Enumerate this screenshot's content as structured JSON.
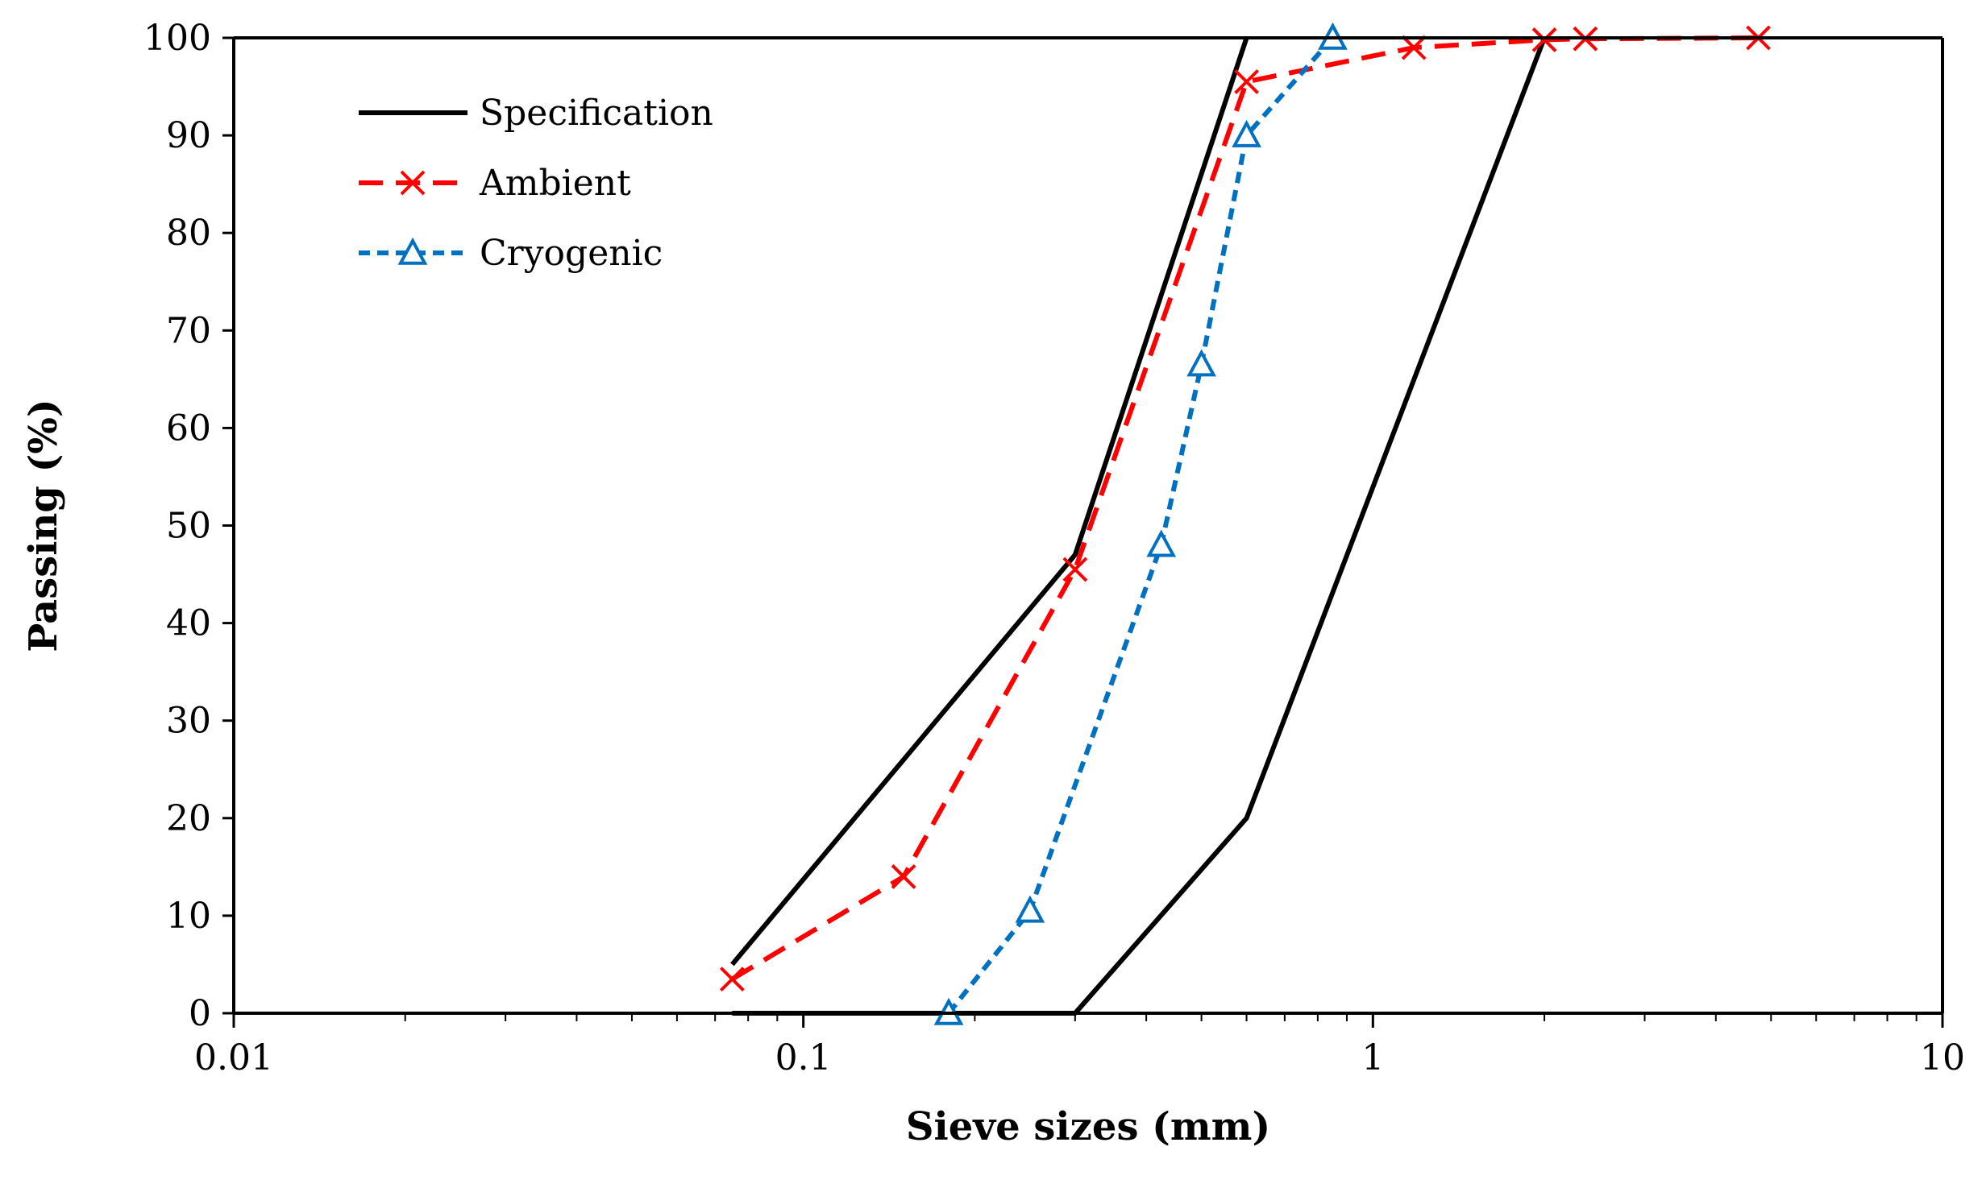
{
  "chart_data": {
    "type": "line",
    "title": "",
    "xlabel": "Sieve sizes (mm)",
    "ylabel": "Passing (%)",
    "xscale": "log",
    "xlim": [
      0.01,
      10
    ],
    "ylim": [
      0,
      100
    ],
    "xticks": [
      0.01,
      0.1,
      1,
      10
    ],
    "xtick_labels": [
      "0.01",
      "0.1",
      "1",
      "10"
    ],
    "yticks": [
      0,
      10,
      20,
      30,
      40,
      50,
      60,
      70,
      80,
      90,
      100
    ],
    "ytick_labels": [
      "0",
      "10",
      "20",
      "30",
      "40",
      "50",
      "60",
      "70",
      "80",
      "90",
      "100"
    ],
    "grid": false,
    "legend_position": "top-left",
    "series": [
      {
        "name": "Specification",
        "color": "#000000",
        "style": "solid",
        "marker": "none",
        "lines": [
          {
            "x": [
              0.075,
              0.3,
              0.6
            ],
            "y": [
              5,
              47,
              100
            ]
          },
          {
            "x": [
              0.075,
              0.3,
              0.6,
              2.0
            ],
            "y": [
              0,
              0,
              20,
              100
            ]
          }
        ]
      },
      {
        "name": "Ambient",
        "color": "#ff0000",
        "style": "dashed",
        "marker": "x",
        "x": [
          0.075,
          0.15,
          0.3,
          0.6,
          1.18,
          2.0,
          2.36,
          4.75
        ],
        "y": [
          3.5,
          14,
          45.5,
          95.5,
          99,
          99.8,
          99.9,
          100
        ]
      },
      {
        "name": "Cryogenic",
        "color": "#0070c0",
        "style": "dotted",
        "marker": "triangle",
        "x": [
          0.18,
          0.25,
          0.425,
          0.5,
          0.6,
          0.85
        ],
        "y": [
          0,
          10.5,
          48,
          66.5,
          90,
          100
        ]
      }
    ]
  }
}
